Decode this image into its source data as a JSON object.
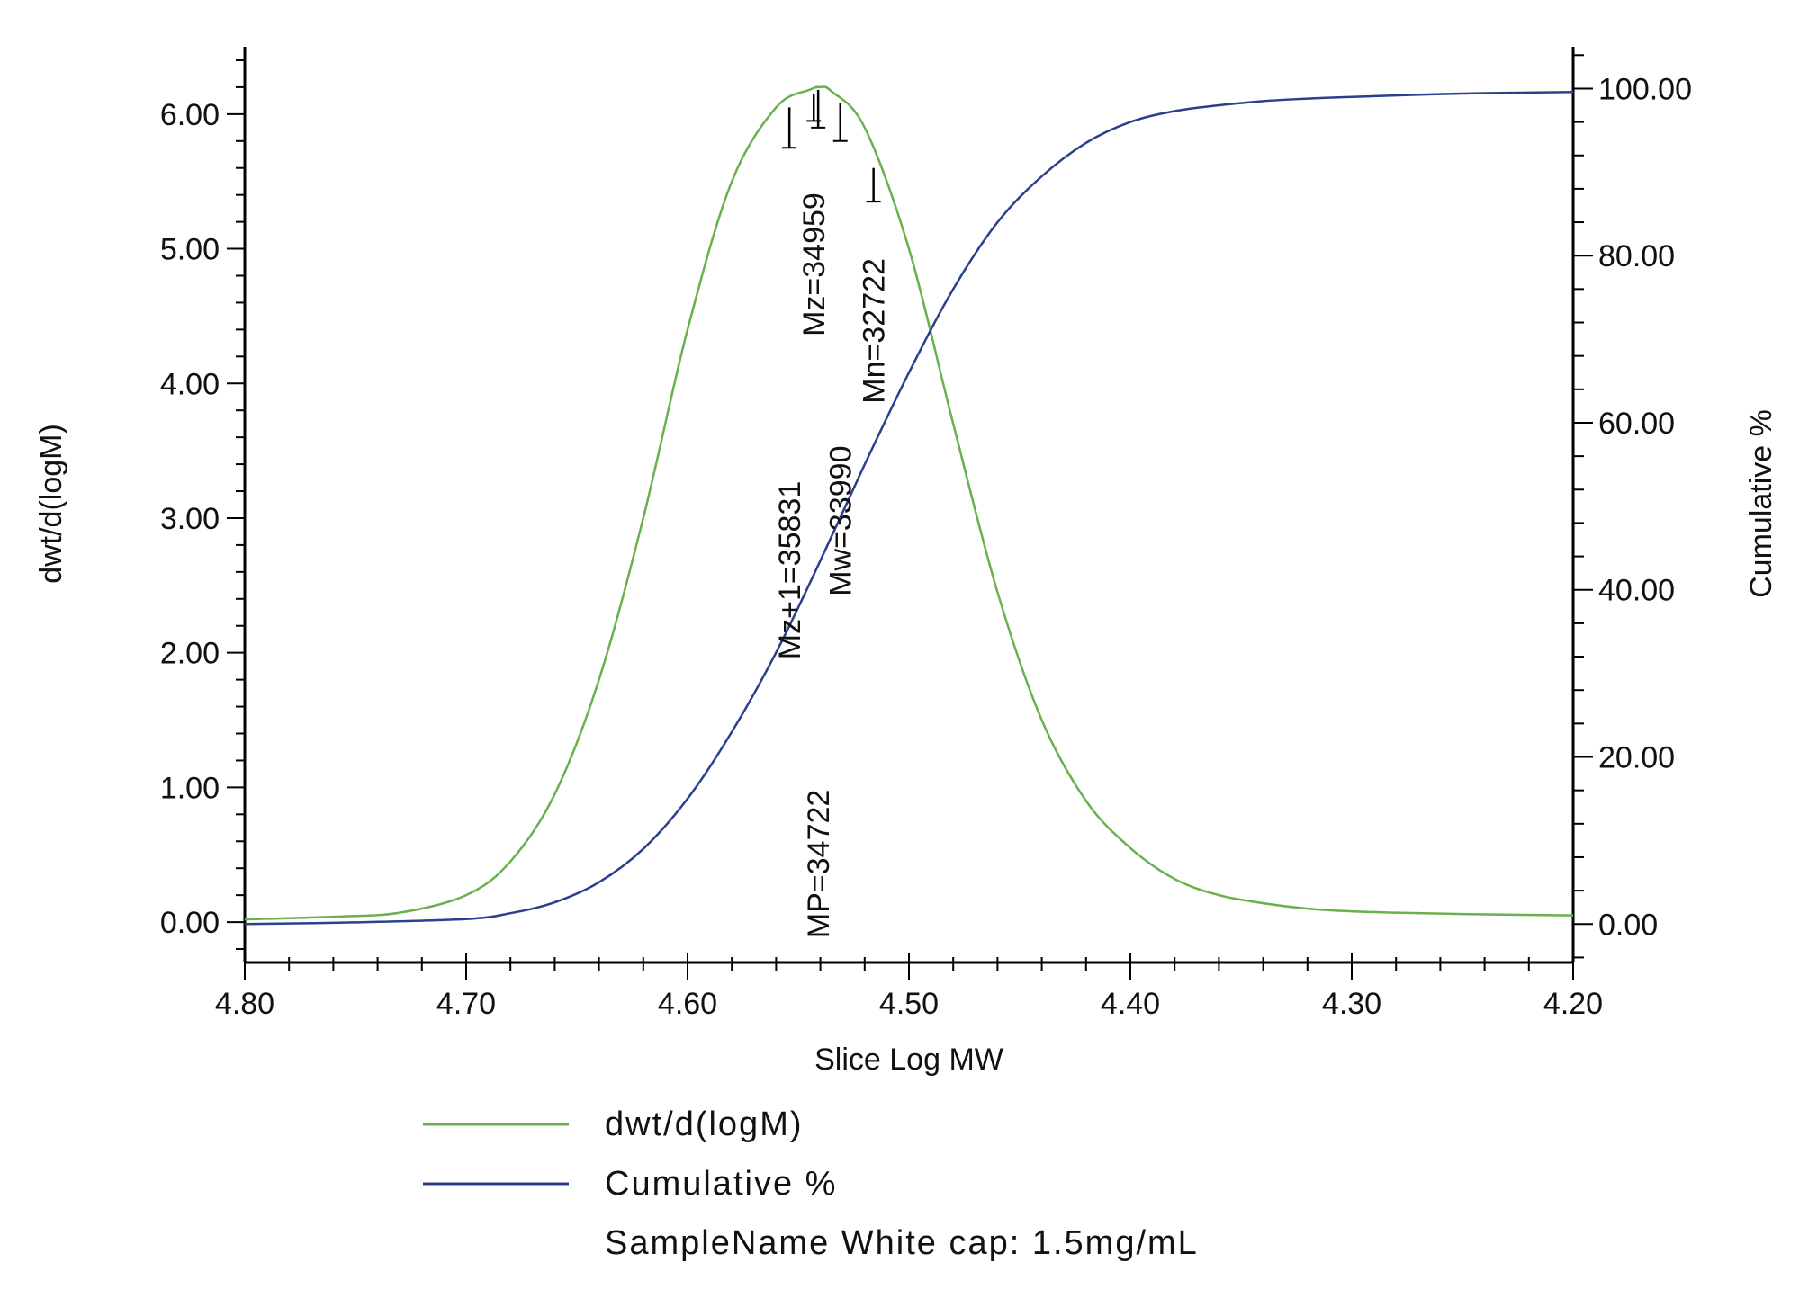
{
  "chart_data": {
    "type": "line",
    "xlabel": "Slice Log MW",
    "ylabel_left": "dwt/d(logM)",
    "ylabel_right": "Cumulative %",
    "xlim": [
      4.8,
      4.2
    ],
    "x_reversed": true,
    "ylim_left": [
      -0.3,
      6.5
    ],
    "ylim_right": [
      -4.6,
      105.0
    ],
    "x_ticks": [
      "4.80",
      "4.70",
      "4.60",
      "4.50",
      "4.40",
      "4.30",
      "4.20"
    ],
    "x_tick_values": [
      4.8,
      4.7,
      4.6,
      4.5,
      4.4,
      4.3,
      4.2
    ],
    "y_left_ticks": [
      "0.00",
      "1.00",
      "2.00",
      "3.00",
      "4.00",
      "5.00",
      "6.00"
    ],
    "y_left_tick_values": [
      0,
      1,
      2,
      3,
      4,
      5,
      6
    ],
    "y_right_ticks": [
      "0.00",
      "20.00",
      "40.00",
      "60.00",
      "80.00",
      "100.00"
    ],
    "y_right_tick_values": [
      0,
      20,
      40,
      60,
      80,
      100
    ],
    "grid": false,
    "legend_position": "bottom",
    "series": [
      {
        "name": "dwt/d(logM)",
        "axis": "left",
        "color": "#6ab04c",
        "x": [
          4.8,
          4.76,
          4.73,
          4.7,
          4.68,
          4.66,
          4.64,
          4.62,
          4.6,
          4.58,
          4.56,
          4.545,
          4.54,
          4.535,
          4.52,
          4.5,
          4.48,
          4.46,
          4.44,
          4.42,
          4.4,
          4.38,
          4.36,
          4.34,
          4.32,
          4.3,
          4.28,
          4.25,
          4.2
        ],
        "values": [
          0.02,
          0.04,
          0.07,
          0.2,
          0.45,
          0.95,
          1.8,
          3.0,
          4.4,
          5.5,
          6.05,
          6.18,
          6.2,
          6.17,
          5.9,
          5.0,
          3.7,
          2.45,
          1.5,
          0.9,
          0.55,
          0.32,
          0.2,
          0.14,
          0.1,
          0.08,
          0.07,
          0.06,
          0.05
        ]
      },
      {
        "name": "Cumulative %",
        "axis": "right",
        "color": "#2c3f8f",
        "x": [
          4.8,
          4.75,
          4.7,
          4.68,
          4.66,
          4.64,
          4.62,
          4.6,
          4.58,
          4.56,
          4.54,
          4.52,
          4.5,
          4.48,
          4.46,
          4.44,
          4.42,
          4.4,
          4.38,
          4.36,
          4.34,
          4.32,
          4.3,
          4.25,
          4.2
        ],
        "values": [
          0.0,
          0.2,
          0.6,
          1.3,
          2.6,
          5.0,
          9.0,
          15.0,
          23.0,
          32.5,
          43.5,
          55.0,
          66.0,
          76.0,
          84.0,
          89.5,
          93.5,
          96.0,
          97.3,
          98.0,
          98.5,
          98.8,
          99.0,
          99.4,
          99.6
        ]
      }
    ],
    "annotations": [
      {
        "label": "Mz+1=35831",
        "x": 4.554,
        "marker_top_y": 6.05,
        "marker_bottom_y": 5.75,
        "text_bottom_y": 1.95
      },
      {
        "label": "MP=34722",
        "x": 4.541,
        "marker_top_y": 6.18,
        "marker_bottom_y": 5.9,
        "text_bottom_y": -0.12
      },
      {
        "label": "Mz=34959",
        "x": 4.543,
        "marker_top_y": 6.15,
        "marker_bottom_y": 5.95,
        "text_bottom_y": 4.35
      },
      {
        "label": "Mw=33990",
        "x": 4.531,
        "marker_top_y": 6.08,
        "marker_bottom_y": 5.8,
        "text_bottom_y": 2.42
      },
      {
        "label": "Mn=32722",
        "x": 4.516,
        "marker_top_y": 5.6,
        "marker_bottom_y": 5.35,
        "text_bottom_y": 3.85
      }
    ],
    "legend": [
      {
        "label": "dwt/d(logM)",
        "color": "#6ab04c",
        "line": true
      },
      {
        "label": "Cumulative %",
        "color": "#2c3f8f",
        "line": true
      },
      {
        "label": "SampleName White cap: 1.5mg/mL",
        "line": false
      }
    ]
  }
}
